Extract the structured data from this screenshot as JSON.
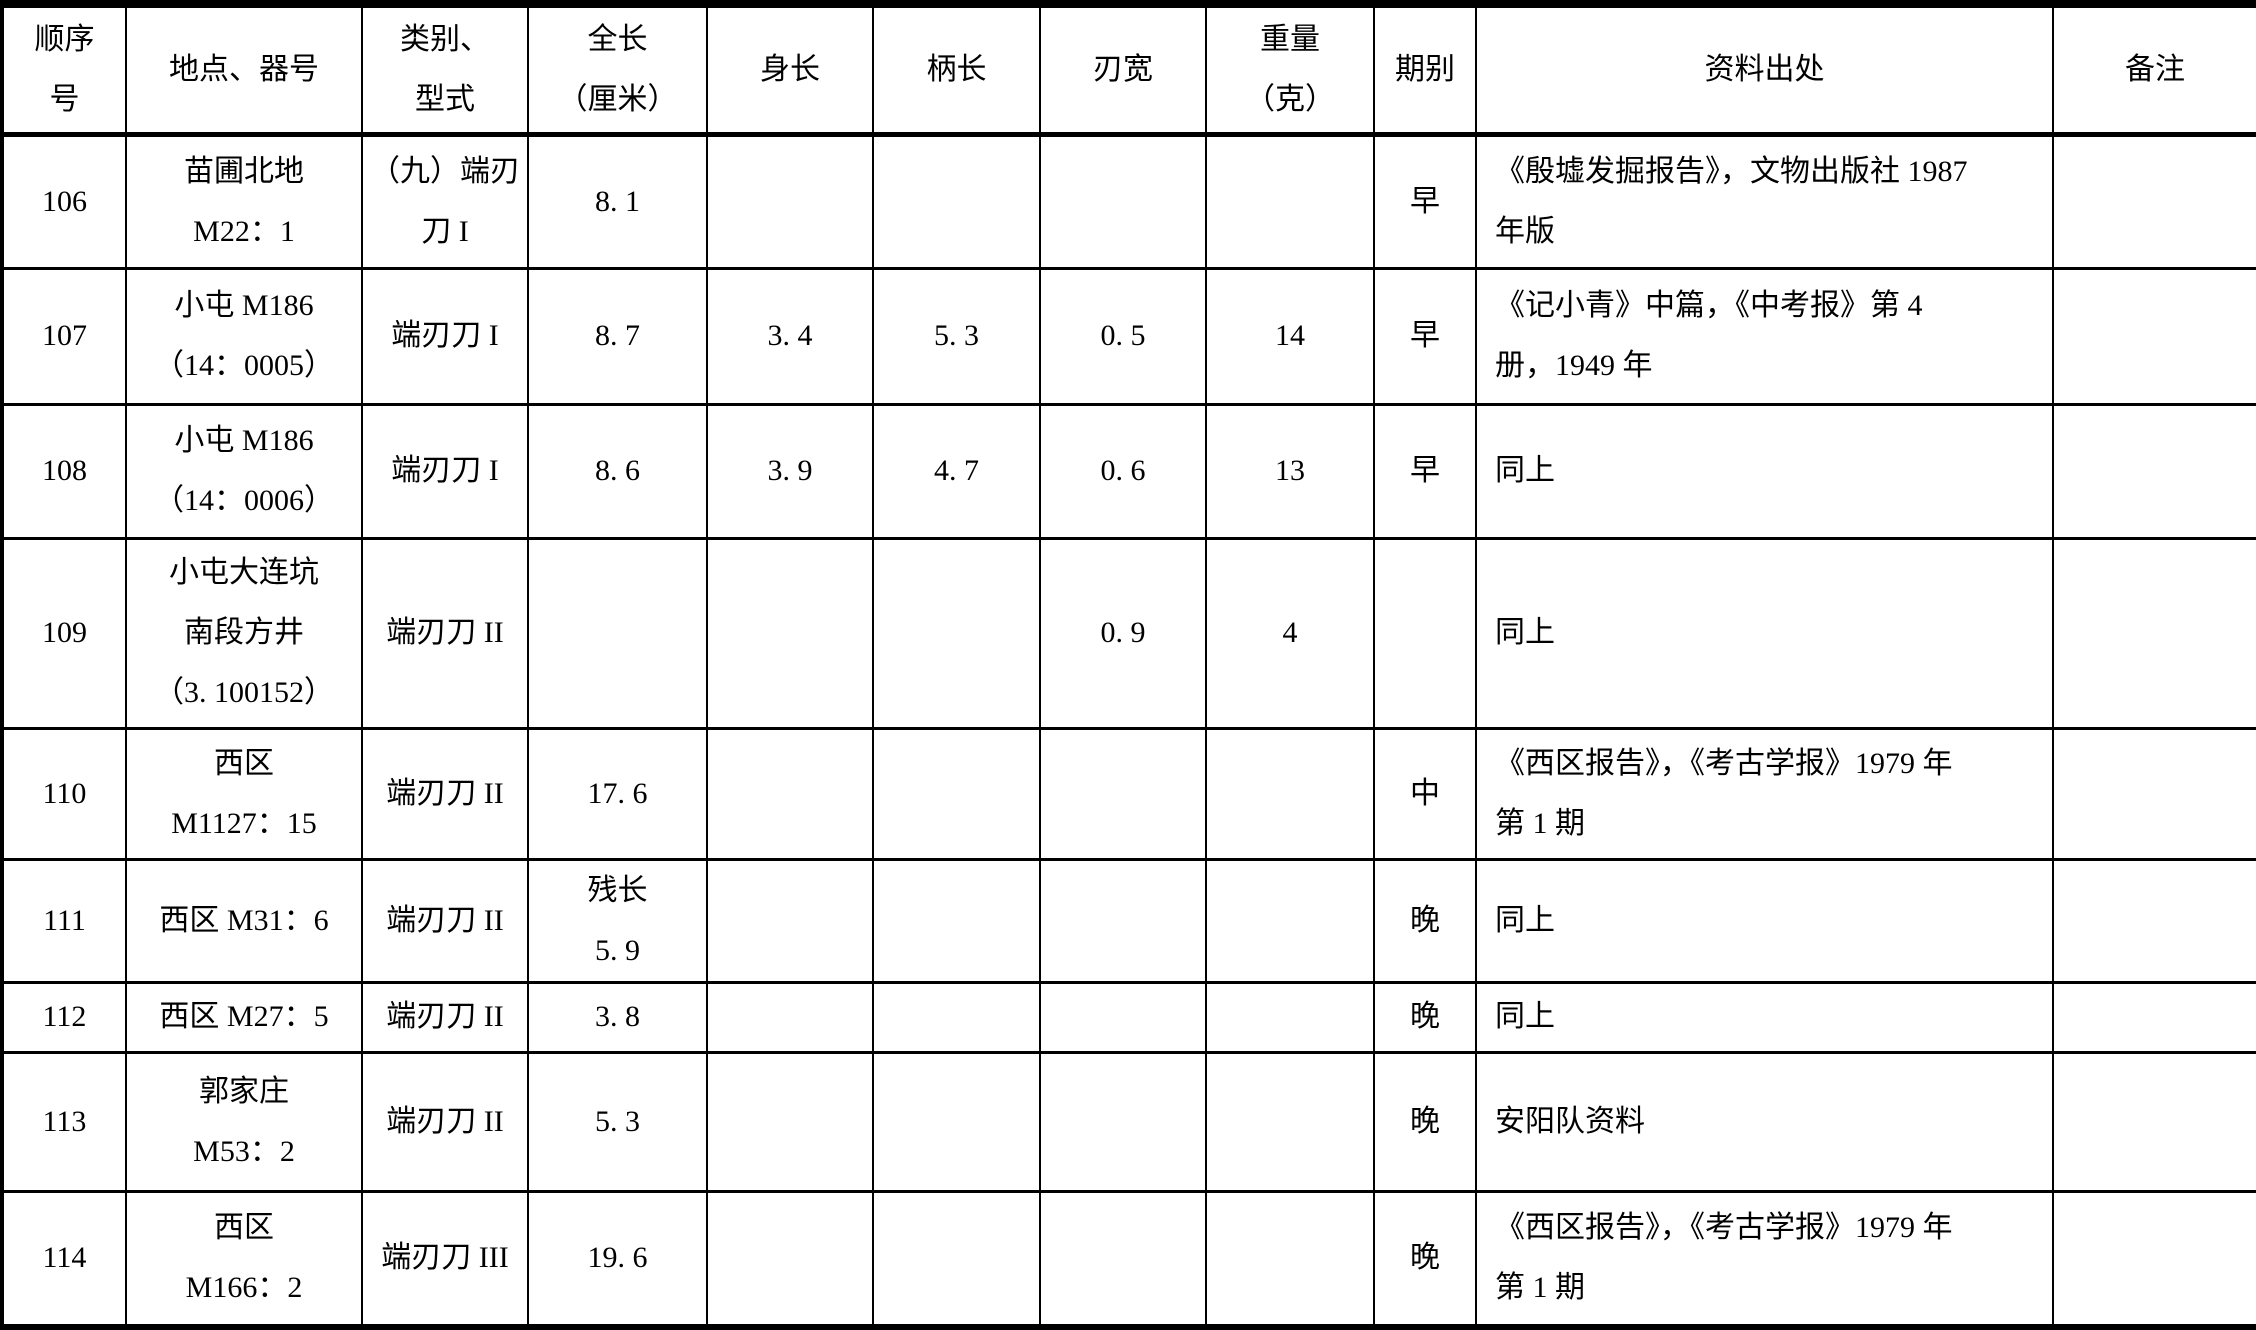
{
  "table": {
    "columns": [
      {
        "key": "seq",
        "label": "顺序\n号"
      },
      {
        "key": "site",
        "label": "地点、器号"
      },
      {
        "key": "type",
        "label": "类别、\n型式"
      },
      {
        "key": "total-length",
        "label": "全长\n（厘米）"
      },
      {
        "key": "body-length",
        "label": "身长"
      },
      {
        "key": "handle-length",
        "label": "柄长"
      },
      {
        "key": "blade-width",
        "label": "刃宽"
      },
      {
        "key": "weight",
        "label": "重量\n（克）"
      },
      {
        "key": "period",
        "label": "期别"
      },
      {
        "key": "source",
        "label": "资料出处"
      },
      {
        "key": "notes",
        "label": "备注"
      }
    ],
    "rows": [
      {
        "cells": [
          "106",
          "苗圃北地\nM22：1",
          "（九）端刃\n刀 I",
          "8. 1",
          "",
          "",
          "",
          "",
          "早",
          "《殷墟发掘报告》，文物出版社 1987\n年版",
          ""
        ]
      },
      {
        "cells": [
          "107",
          "小屯 M186\n（14：0005）",
          "端刃刀 I",
          "8. 7",
          "3. 4",
          "5. 3",
          "0. 5",
          "14",
          "早",
          "《记小青》中篇，《中考报》第 4\n册，1949 年",
          ""
        ]
      },
      {
        "cells": [
          "108",
          "小屯 M186\n（14：0006）",
          "端刃刀 I",
          "8. 6",
          "3. 9",
          "4. 7",
          "0. 6",
          "13",
          "早",
          "同上",
          ""
        ]
      },
      {
        "cells": [
          "109",
          "小屯大连坑\n南段方井\n（3. 100152）",
          "端刃刀 II",
          "",
          "",
          "",
          "0. 9",
          "4",
          "",
          "同上",
          ""
        ]
      },
      {
        "cells": [
          "110",
          "西区\nM1127：15",
          "端刃刀 II",
          "17. 6",
          "",
          "",
          "",
          "",
          "中",
          "《西区报告》，《考古学报》1979 年\n第 1 期",
          ""
        ]
      },
      {
        "cells": [
          "111",
          "西区 M31：6",
          "端刃刀 II",
          "残长\n5. 9",
          "",
          "",
          "",
          "",
          "晚",
          "同上",
          ""
        ]
      },
      {
        "cells": [
          "112",
          "西区 M27：5",
          "端刃刀 II",
          "3. 8",
          "",
          "",
          "",
          "",
          "晚",
          "同上",
          ""
        ]
      },
      {
        "cells": [
          "113",
          "郭家庄\nM53：2",
          "端刃刀 II",
          "5. 3",
          "",
          "",
          "",
          "",
          "晚",
          "安阳队资料",
          ""
        ]
      },
      {
        "cells": [
          "114",
          "西区\nM166：2",
          "端刃刀 III",
          "19. 6",
          "",
          "",
          "",
          "",
          "晚",
          "《西区报告》，《考古学报》1979 年\n第 1 期",
          ""
        ]
      }
    ]
  }
}
